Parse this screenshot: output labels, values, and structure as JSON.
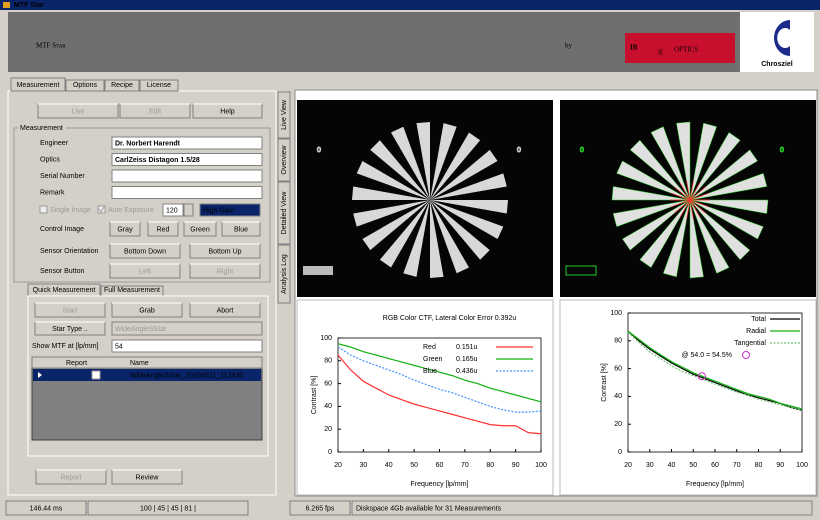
{
  "window": {
    "title": "MTF Star"
  },
  "header": {
    "product": "MTF Star",
    "by": "by",
    "logo_ib": "IB",
    "logo_e": "/E",
    "logo_optics": "OPTICS",
    "logo_chrosziel": "Chrosziel"
  },
  "tabs": [
    "Measurement",
    "Options",
    "Recipe",
    "License"
  ],
  "toolbar": [
    "Live",
    "Edit",
    "Help"
  ],
  "measurement": {
    "group": "Measurement",
    "fields": [
      {
        "label": "Engineer",
        "value": "Dr. Norbert Harendt"
      },
      {
        "label": "Optics",
        "value": "CarlZeiss Distagon 1.5/28"
      },
      {
        "label": "Serial Number"
      },
      {
        "label": "Remark"
      }
    ],
    "single_image": "Single Image",
    "auto_exposure": "Auto Exposure",
    "exposure": 120,
    "gain": "High Gain"
  },
  "control_image": {
    "label": "Control Image",
    "buttons": [
      "Gray",
      "Red",
      "Green",
      "Blue"
    ]
  },
  "sensor_orientation": {
    "label": "Sensor Orientation",
    "buttons": [
      "Bottom Down",
      "Bottom Up"
    ]
  },
  "sensor_button": {
    "label": "Sensor Button",
    "buttons": [
      "Left",
      "Right"
    ]
  },
  "sub_tabs": [
    "Quick Measurement",
    "Full Measurement"
  ],
  "quick": {
    "buttons": [
      "Start",
      "Grab",
      "Abort"
    ],
    "star_type_button": "Star Type ..",
    "star_type": "WideAngleSStar",
    "show_mtf_label": "Show MTF at [lp/mm]",
    "show_mtf_value": 54
  },
  "table": {
    "headers": [
      "Report",
      "Name"
    ],
    "rows": [
      [
        "WideAngleSStar_20100521_113935"
      ]
    ]
  },
  "bottom_buttons": [
    "Report",
    "Review"
  ],
  "side_tabs": [
    "Live View",
    "Overview",
    "Detailed View",
    "Analysis Log"
  ],
  "views": [
    {
      "marks": [
        "0",
        "0"
      ]
    },
    {
      "marks": [
        "0",
        "0"
      ]
    }
  ],
  "status": [
    "146.44 ms",
    "100 | 45 | 45 | 81 |",
    "6.265 fps",
    "Diskspace 4Gb available for 31 Measurements"
  ],
  "chart_data": [
    {
      "type": "line",
      "title": "RGB Color CTF, Lateral Color Error   0.392u",
      "xlabel": "Frequency [lp/mm]",
      "ylabel": "Contrast [%]",
      "x": [
        20,
        25,
        30,
        35,
        40,
        45,
        50,
        55,
        60,
        65,
        70,
        75,
        80,
        85,
        90,
        95,
        100
      ],
      "series": [
        {
          "name": "Red",
          "lateral_error": "0.151u",
          "color": "#ff3030",
          "style": "solid",
          "values": [
            85,
            72,
            62,
            56,
            50,
            46,
            42,
            39,
            36,
            33,
            30,
            27,
            24,
            23,
            23,
            17,
            16
          ]
        },
        {
          "name": "Green",
          "lateral_error": "0.165u",
          "color": "#10b010",
          "style": "solid",
          "values": [
            95,
            92,
            88,
            85,
            82,
            79,
            76,
            73,
            70,
            67,
            63,
            60,
            56,
            53,
            50,
            47,
            44
          ]
        },
        {
          "name": "Blue",
          "lateral_error": "0.436u",
          "color": "#4090ff",
          "style": "dotted",
          "values": [
            92,
            85,
            80,
            76,
            72,
            68,
            63,
            59,
            55,
            52,
            48,
            44,
            40,
            37,
            35,
            35,
            36
          ]
        }
      ],
      "xlim": [
        20,
        100
      ],
      "xticks": [
        20,
        30,
        40,
        50,
        60,
        70,
        80,
        90,
        100
      ],
      "ylim": [
        0,
        100
      ],
      "yticks": [
        0,
        20,
        40,
        60,
        80,
        100
      ]
    },
    {
      "type": "line",
      "xlabel": "Frequency [lp/mm]",
      "ylabel": "Contrast [%]",
      "x": [
        20,
        25,
        30,
        35,
        40,
        45,
        50,
        55,
        60,
        65,
        70,
        75,
        80,
        85,
        90,
        95,
        100
      ],
      "series": [
        {
          "name": "Total",
          "color": "#000000",
          "style": "solid",
          "values": [
            87,
            80,
            74,
            69,
            64,
            60,
            56,
            53,
            50,
            47,
            44,
            41,
            39,
            37,
            35,
            32,
            30
          ]
        },
        {
          "name": "Radial",
          "color": "#10b010",
          "style": "solid",
          "values": [
            87,
            81,
            75,
            70,
            65,
            61,
            57,
            54,
            51,
            48,
            45,
            42,
            40,
            38,
            35,
            33,
            31
          ]
        },
        {
          "name": "Tangential",
          "color": "#70c070",
          "style": "dotted",
          "values": [
            86,
            79,
            72,
            67,
            62,
            58,
            55,
            52,
            49,
            46,
            43,
            41,
            38,
            36,
            34,
            32,
            30
          ]
        }
      ],
      "marker": {
        "label": "@ 54.0 = 54.5%",
        "x": 54.0,
        "y": 54.5,
        "color": "#cc33cc"
      },
      "xlim": [
        20,
        100
      ],
      "xticks": [
        20,
        30,
        40,
        50,
        60,
        70,
        80,
        90,
        100
      ],
      "ylim": [
        0,
        100
      ],
      "yticks": [
        0,
        20,
        40,
        60,
        80,
        100
      ]
    }
  ]
}
